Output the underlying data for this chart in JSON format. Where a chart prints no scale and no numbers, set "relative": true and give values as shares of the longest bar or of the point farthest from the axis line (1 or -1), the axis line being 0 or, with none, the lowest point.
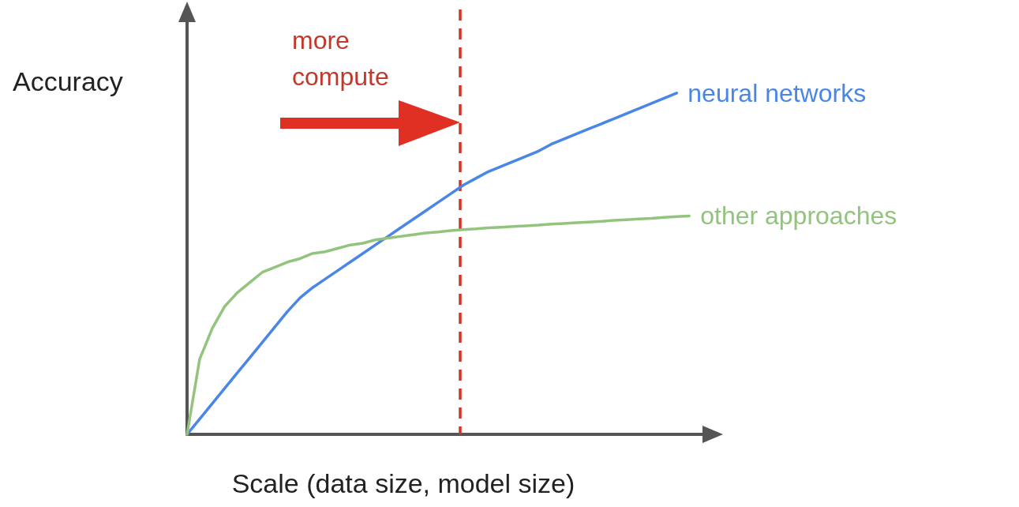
{
  "chart_data": {
    "type": "line",
    "relative": true,
    "xlabel": "Scale (data size, model size)",
    "ylabel": "Accuracy",
    "grid": false,
    "legend": false,
    "marker": "none",
    "line_style": "solid",
    "categories": [
      null,
      null,
      null,
      null,
      null,
      null,
      null,
      null,
      null,
      null,
      null,
      null,
      null,
      null,
      null,
      null,
      null,
      null,
      null,
      null,
      null,
      null,
      null,
      null,
      null,
      null,
      null,
      null,
      null,
      null,
      null,
      null,
      null,
      null,
      null,
      null,
      null,
      null,
      null,
      null,
      null,
      null,
      null
    ],
    "series": [
      {
        "name": "neural networks",
        "color": "#4a86e8",
        "values": [
          0,
          0.045,
          0.09,
          0.135,
          0.18,
          0.225,
          0.27,
          0.315,
          0.36,
          0.4,
          0.43,
          0.455,
          0.48,
          0.505,
          0.53,
          0.555,
          0.58,
          0.605,
          0.63,
          0.655,
          0.68,
          0.705,
          0.73,
          0.75,
          0.77,
          0.785,
          0.8,
          0.815,
          0.83,
          0.85,
          0.865,
          0.88,
          0.895,
          0.91,
          0.925,
          0.94,
          0.955,
          0.97,
          0.985,
          1,
          null,
          null,
          null
        ]
      },
      {
        "name": "other approaches",
        "color": "#93c47d",
        "values": [
          0,
          0.22,
          0.31,
          0.375,
          0.415,
          0.445,
          0.475,
          0.49,
          0.505,
          0.515,
          0.53,
          0.535,
          0.545,
          0.555,
          0.56,
          0.57,
          0.575,
          0.58,
          0.585,
          0.59,
          0.593,
          0.597,
          0.6,
          0.602,
          0.605,
          0.607,
          0.609,
          0.611,
          0.613,
          0.616,
          0.618,
          0.62,
          0.622,
          0.624,
          0.627,
          0.629,
          0.631,
          0.633,
          0.636,
          0.638,
          0.64,
          null,
          null
        ]
      }
    ],
    "annotations": [
      "more compute"
    ]
  }
}
